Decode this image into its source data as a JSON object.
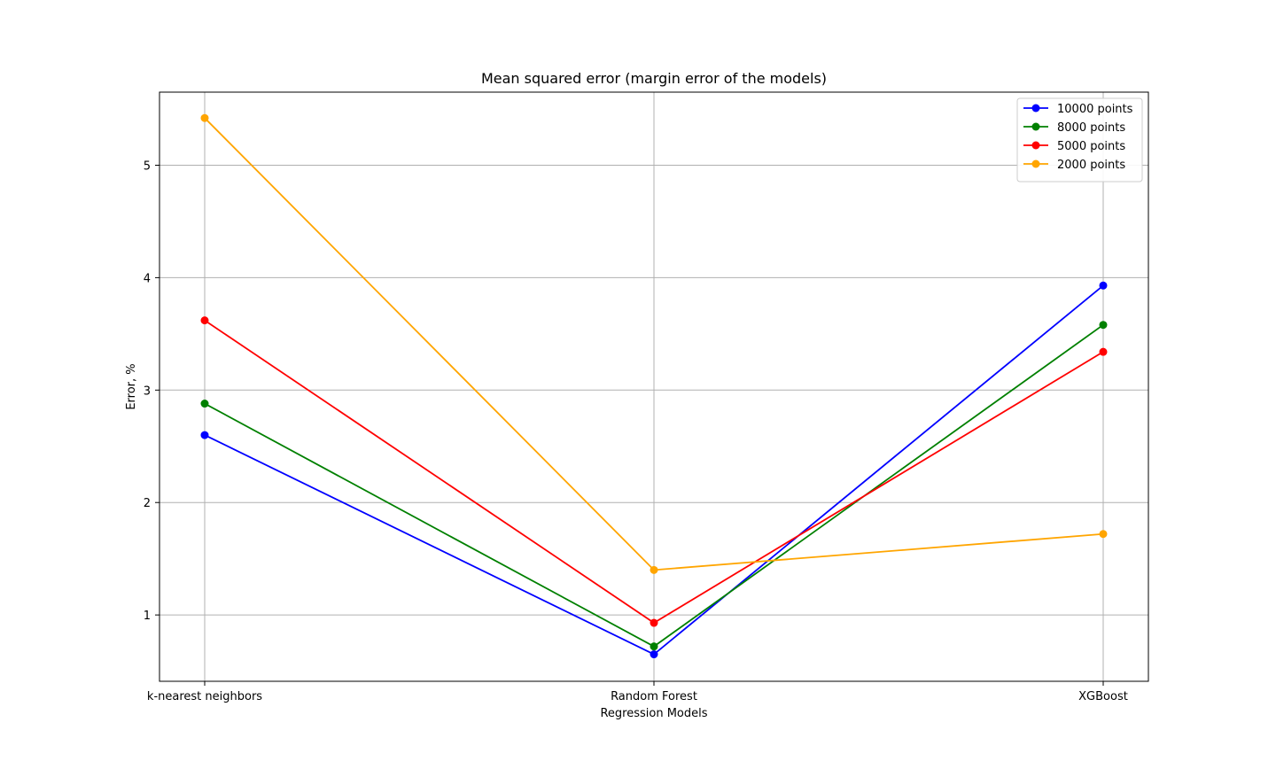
{
  "chart_data": {
    "type": "line",
    "title": "Mean squared error (margin error of the models)",
    "xlabel": "Regression Models",
    "ylabel": "Error, %",
    "categories": [
      "k-nearest neighbors",
      "Random Forest",
      "XGBoost"
    ],
    "ylim": [
      0.41,
      5.65
    ],
    "yticks": [
      1,
      2,
      3,
      4,
      5
    ],
    "grid": true,
    "legend_position": "top-right",
    "markers": "circle",
    "series": [
      {
        "name": "10000 points",
        "color": "#0000ff",
        "values": [
          2.6,
          0.65,
          3.93
        ]
      },
      {
        "name": "8000 points",
        "color": "#008000",
        "values": [
          2.88,
          0.72,
          3.58
        ]
      },
      {
        "name": "5000 points",
        "color": "#ff0000",
        "values": [
          3.62,
          0.93,
          3.34
        ]
      },
      {
        "name": "2000 points",
        "color": "#ffa500",
        "values": [
          5.42,
          1.4,
          1.72
        ]
      }
    ]
  }
}
